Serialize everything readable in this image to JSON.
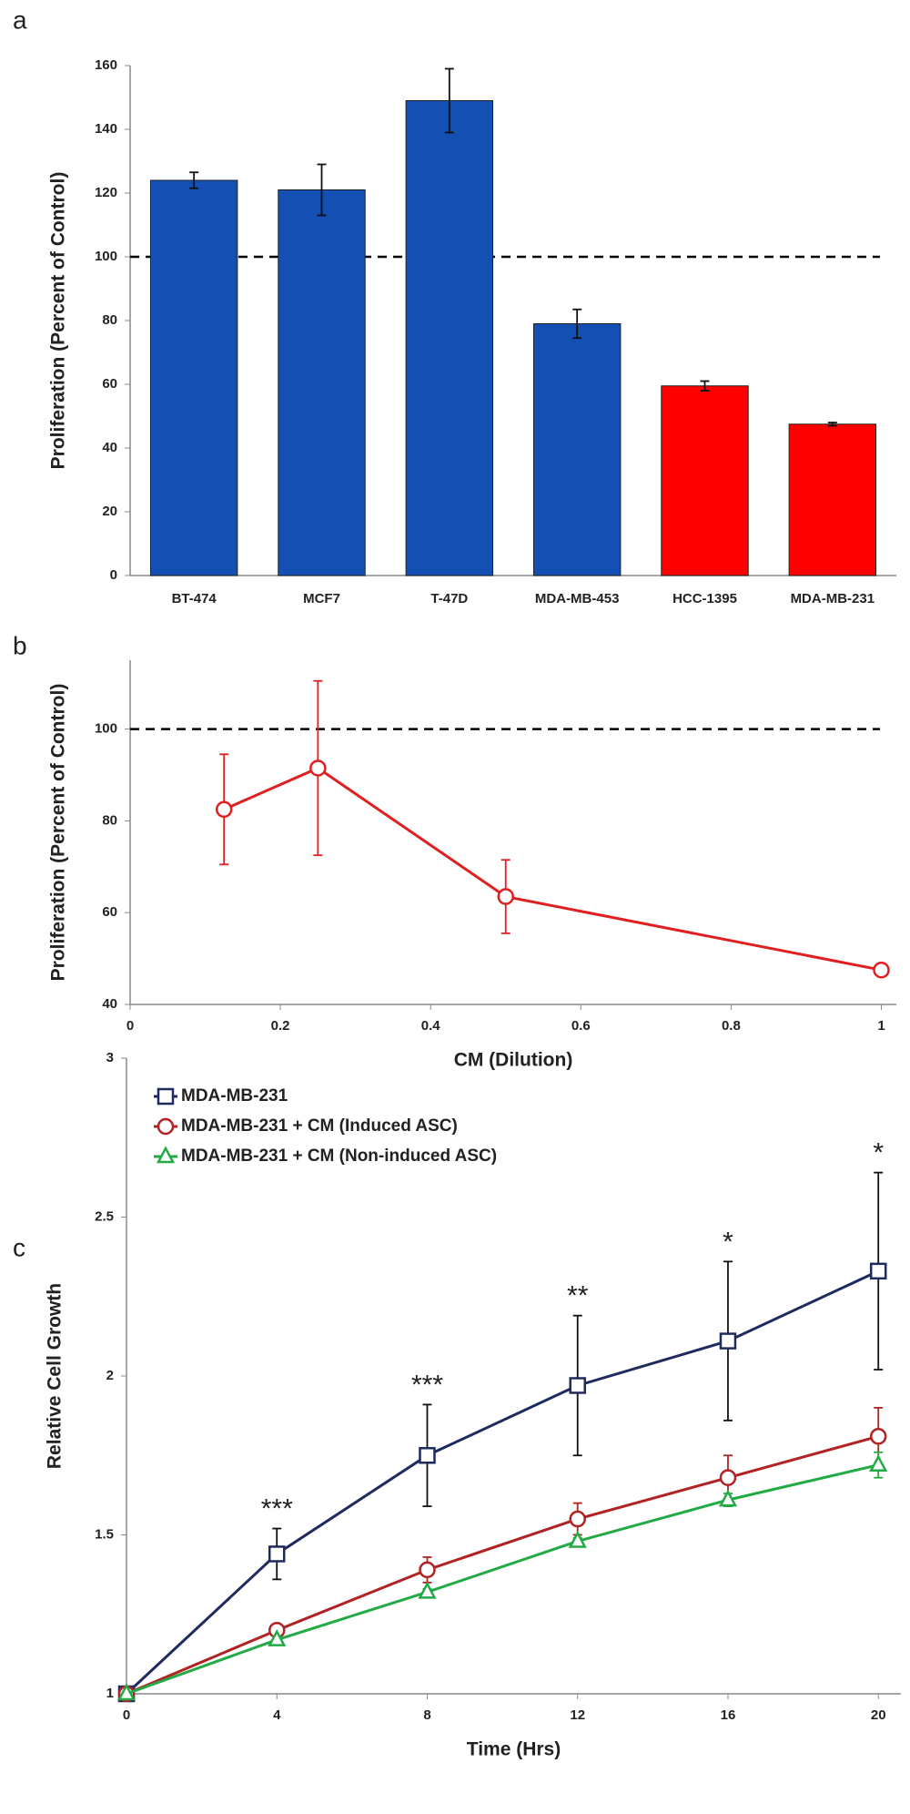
{
  "chart_data": [
    {
      "type": "bar",
      "panel": "a",
      "ylabel": "Proliferation (Percent of Control)",
      "categories": [
        "BT-474",
        "MCF7",
        "T-47D",
        "MDA-MB-453",
        "HCC-1395",
        "MDA-MB-231"
      ],
      "values": [
        124,
        121,
        149,
        79,
        59.5,
        47.5
      ],
      "errors": [
        2.5,
        8,
        10,
        4.5,
        1.5,
        0.5
      ],
      "colors": [
        "#1450b4",
        "#1450b4",
        "#1450b4",
        "#1450b4",
        "#ff0000",
        "#ff0000"
      ],
      "ylim": [
        0,
        160
      ],
      "yticks": [
        0,
        20,
        40,
        60,
        80,
        100,
        120,
        140,
        160
      ],
      "reference_line": 100,
      "grid": false
    },
    {
      "type": "line",
      "panel": "b",
      "ylabel": "Proliferation (Percent of Control)",
      "xlabel": "CM (Dilution)",
      "x": [
        0.125,
        0.25,
        0.5,
        1
      ],
      "values": [
        82.5,
        91.5,
        63.5,
        47.5
      ],
      "errors": [
        12,
        19,
        8,
        0
      ],
      "color": "#e02020",
      "marker": "circle",
      "xlim": [
        0,
        1.02
      ],
      "xticks": [
        0,
        0.2,
        0.4,
        0.6,
        0.8,
        1
      ],
      "ylim": [
        40,
        115
      ],
      "yticks": [
        40,
        60,
        80,
        100
      ],
      "reference_line": 100,
      "grid": false
    },
    {
      "type": "line",
      "panel": "c",
      "ylabel": "Relative Cell Growth",
      "xlabel": "Time (Hrs)",
      "x": [
        0,
        4,
        8,
        12,
        16,
        20
      ],
      "series": [
        {
          "name": "MDA-MB-231",
          "color": "#1f2a5e",
          "marker": "square",
          "values": [
            1,
            1.44,
            1.75,
            1.97,
            2.11,
            2.33
          ],
          "errors": [
            0,
            0.08,
            0.16,
            0.22,
            0.25,
            0.31
          ]
        },
        {
          "name": "MDA-MB-231 + CM (Induced ASC)",
          "color": "#b22222",
          "marker": "circle",
          "values": [
            1,
            1.2,
            1.39,
            1.55,
            1.68,
            1.81
          ],
          "errors": [
            0,
            0.01,
            0.04,
            0.05,
            0.07,
            0.09
          ]
        },
        {
          "name": "MDA-MB-231 + CM (Non-induced ASC)",
          "color": "#22aa44",
          "marker": "triangle",
          "values": [
            1,
            1.17,
            1.32,
            1.48,
            1.61,
            1.72
          ],
          "errors": [
            0,
            0.01,
            0.01,
            0.01,
            0.02,
            0.04
          ]
        }
      ],
      "annotations": [
        {
          "x": 4,
          "text": "***"
        },
        {
          "x": 8,
          "text": "***"
        },
        {
          "x": 12,
          "text": "**"
        },
        {
          "x": 16,
          "text": "*"
        },
        {
          "x": 20,
          "text": "*"
        }
      ],
      "xlim": [
        0,
        20.6
      ],
      "xticks": [
        0,
        4,
        8,
        12,
        16,
        20
      ],
      "ylim": [
        1,
        3
      ],
      "yticks": [
        1,
        1.5,
        2,
        2.5,
        3
      ],
      "legend": "upper left",
      "grid": false
    }
  ]
}
